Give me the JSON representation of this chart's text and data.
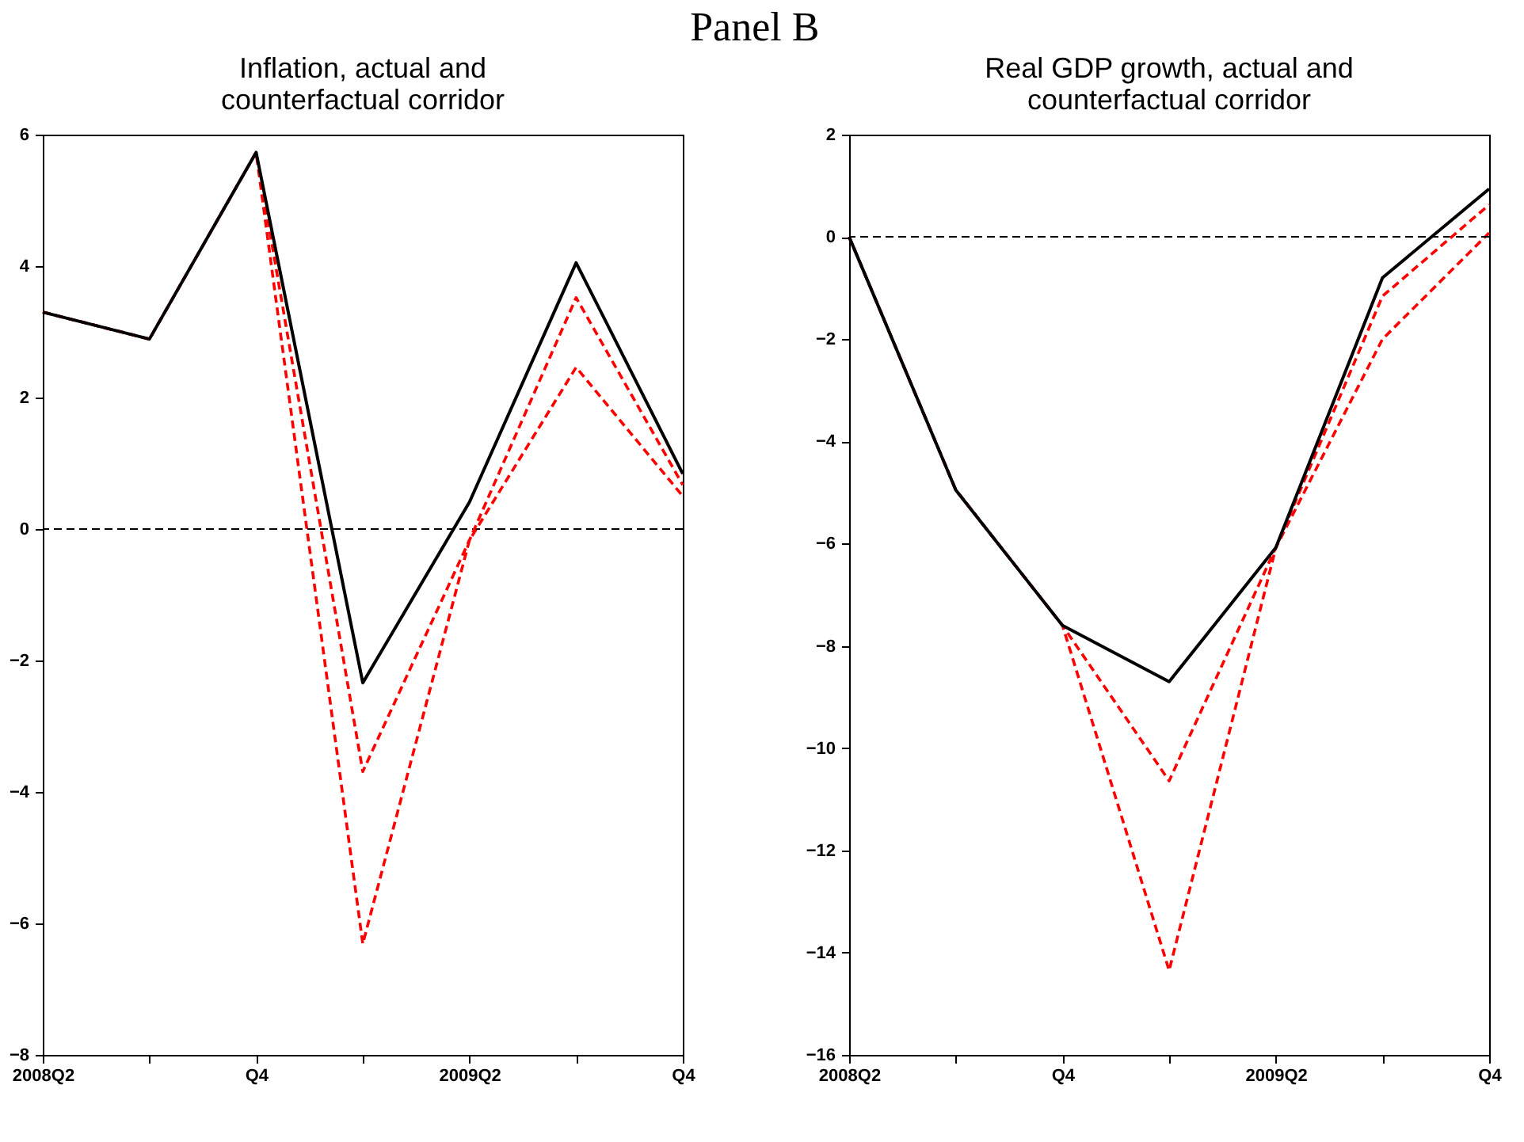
{
  "chart_data": [
    {
      "type": "line",
      "title": "Inflation, actual and\ncounterfactual corridor",
      "annotations": [
        "Panel B"
      ],
      "categories": [
        "2008Q2",
        null,
        "Q4",
        null,
        "2009Q2",
        null,
        "Q4"
      ],
      "ylim": [
        -8,
        6
      ],
      "yticks": [
        -8,
        -6,
        -4,
        -2,
        0,
        2,
        4,
        6
      ],
      "grid": false,
      "series": [
        {
          "color": "#ff0000",
          "line_style": "dashed",
          "values": [
            3.3,
            2.89,
            5.73,
            -6.31,
            -0.17,
            2.46,
            0.5
          ]
        },
        {
          "color": "#ff0000",
          "line_style": "dashed",
          "values": [
            3.3,
            2.89,
            5.73,
            -3.69,
            -0.17,
            3.52,
            0.67
          ]
        },
        {
          "color": "#000000",
          "line_style": "solid",
          "values": [
            3.3,
            2.89,
            5.73,
            -2.34,
            0.41,
            4.05,
            0.84
          ]
        }
      ],
      "ref_lines": [
        {
          "axis": "y",
          "value": 0,
          "color": "#000000",
          "line_style": "dashed"
        }
      ]
    },
    {
      "type": "line",
      "title": "Real GDP growth, actual and\ncounterfactual corridor",
      "categories": [
        "2008Q2",
        null,
        "Q4",
        null,
        "2009Q2",
        null,
        "Q4"
      ],
      "ylim": [
        -16,
        2
      ],
      "yticks": [
        -16,
        -14,
        -12,
        -10,
        -8,
        -6,
        -4,
        -2,
        0,
        2
      ],
      "grid": false,
      "series": [
        {
          "color": "#ff0000",
          "line_style": "dashed",
          "values": [
            0,
            -4.95,
            -7.6,
            -14.35,
            -6.08,
            -2.0,
            0.08
          ]
        },
        {
          "color": "#ff0000",
          "line_style": "dashed",
          "values": [
            0,
            -4.95,
            -7.6,
            -10.64,
            -6.08,
            -1.16,
            0.63
          ]
        },
        {
          "color": "#000000",
          "line_style": "solid",
          "values": [
            0,
            -4.95,
            -7.6,
            -8.7,
            -6.08,
            -0.8,
            0.94
          ]
        }
      ],
      "ref_lines": [
        {
          "axis": "y",
          "value": 0,
          "color": "#000000",
          "line_style": "dashed"
        }
      ]
    }
  ]
}
